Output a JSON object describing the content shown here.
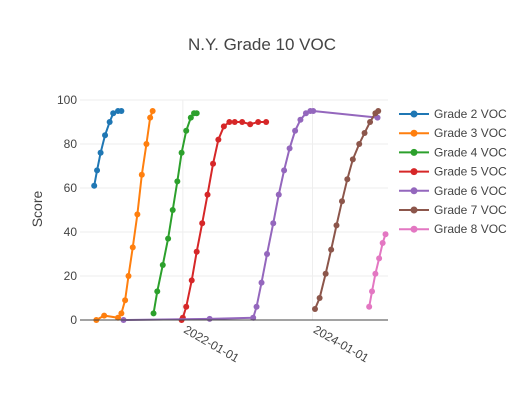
{
  "chart_data": {
    "type": "line",
    "title": "N.Y. Grade 10 VOC",
    "xlabel": "",
    "ylabel": "Score",
    "x_axis_type": "date",
    "xlim": [
      "2020-06-01",
      "2025-03-01"
    ],
    "ylim": [
      0,
      100
    ],
    "y_ticks": [
      0,
      20,
      40,
      60,
      80,
      100
    ],
    "x_ticks": [
      "2022-01-01",
      "2024-01-01"
    ],
    "grid": true,
    "legend_position": "right",
    "series": [
      {
        "name": "Grade 2 VOC",
        "color": "#1f77b4",
        "x": [
          "2020-08-20",
          "2020-09-05",
          "2020-09-25",
          "2020-10-20",
          "2020-11-15",
          "2020-12-05",
          "2021-01-01",
          "2021-01-20"
        ],
        "y": [
          61,
          68,
          76,
          84,
          90,
          94,
          95,
          95
        ]
      },
      {
        "name": "Grade 3 VOC",
        "color": "#ff7f0e",
        "x": [
          "2020-09-01",
          "2020-10-15",
          "2021-01-01",
          "2021-01-20",
          "2021-02-10",
          "2021-03-01",
          "2021-03-25",
          "2021-04-20",
          "2021-05-15",
          "2021-06-10",
          "2021-07-01",
          "2021-07-15"
        ],
        "y": [
          0,
          2,
          1,
          3,
          9,
          20,
          33,
          48,
          66,
          80,
          92,
          95
        ]
      },
      {
        "name": "Grade 4 VOC",
        "color": "#2ca02c",
        "x": [
          "2021-07-20",
          "2021-08-10",
          "2021-09-10",
          "2021-10-10",
          "2021-11-05",
          "2021-12-01",
          "2021-12-25",
          "2022-01-20",
          "2022-02-15",
          "2022-03-05",
          "2022-03-20"
        ],
        "y": [
          3,
          13,
          25,
          37,
          50,
          63,
          76,
          86,
          92,
          94,
          94
        ]
      },
      {
        "name": "Grade 5 VOC",
        "color": "#d62728",
        "x": [
          "2021-12-25",
          "2022-01-01",
          "2022-01-20",
          "2022-02-20",
          "2022-03-20",
          "2022-04-20",
          "2022-05-20",
          "2022-06-20",
          "2022-07-20",
          "2022-08-20",
          "2022-09-20",
          "2022-10-20",
          "2022-12-01",
          "2023-01-15",
          "2023-03-01",
          "2023-04-15"
        ],
        "y": [
          0,
          1,
          6,
          18,
          31,
          44,
          57,
          71,
          82,
          88,
          90,
          90,
          90,
          89,
          90,
          90
        ]
      },
      {
        "name": "Grade 6 VOC",
        "color": "#9467bd",
        "x": [
          "2021-02-01",
          "2022-06-01",
          "2023-02-01",
          "2023-02-20",
          "2023-03-20",
          "2023-04-20",
          "2023-05-25",
          "2023-06-25",
          "2023-07-25",
          "2023-08-25",
          "2023-09-25",
          "2023-10-25",
          "2023-11-25",
          "2023-12-20",
          "2024-01-05",
          "2025-01-01"
        ],
        "y": [
          0,
          0.5,
          1,
          6,
          17,
          30,
          44,
          57,
          68,
          78,
          86,
          91,
          94,
          95,
          95,
          92
        ]
      },
      {
        "name": "Grade 7 VOC",
        "color": "#8c564b",
        "x": [
          "2024-01-15",
          "2024-02-10",
          "2024-03-15",
          "2024-04-15",
          "2024-05-15",
          "2024-06-15",
          "2024-07-15",
          "2024-08-15",
          "2024-09-20",
          "2024-10-20",
          "2024-11-20",
          "2024-12-20",
          "2025-01-05"
        ],
        "y": [
          5,
          10,
          21,
          32,
          43,
          54,
          64,
          73,
          80,
          85,
          90,
          94,
          95
        ]
      },
      {
        "name": "Grade 8 VOC",
        "color": "#e377c2",
        "x": [
          "2024-11-15",
          "2024-12-01",
          "2024-12-20",
          "2025-01-10",
          "2025-01-30",
          "2025-02-15"
        ],
        "y": [
          6,
          13,
          21,
          28,
          35,
          39
        ]
      }
    ]
  }
}
